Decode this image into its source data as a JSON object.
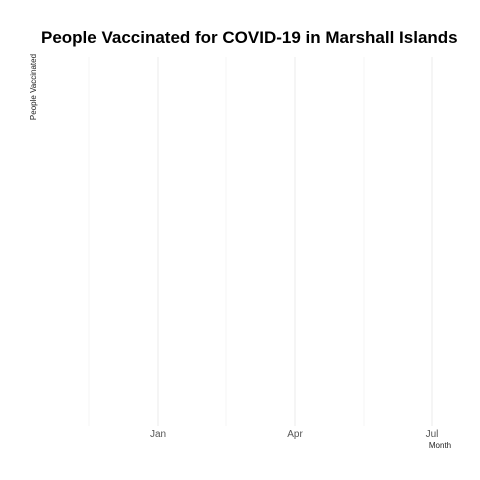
{
  "chart_data": {
    "type": "line",
    "title": "People Vaccinated for COVID-19 in Marshall Islands",
    "xlabel": "Month",
    "ylabel": "People Vaccinated",
    "x_ticks": [
      "Jan",
      "Apr",
      "Jul"
    ],
    "series": [],
    "grid": true,
    "legend": "none"
  }
}
